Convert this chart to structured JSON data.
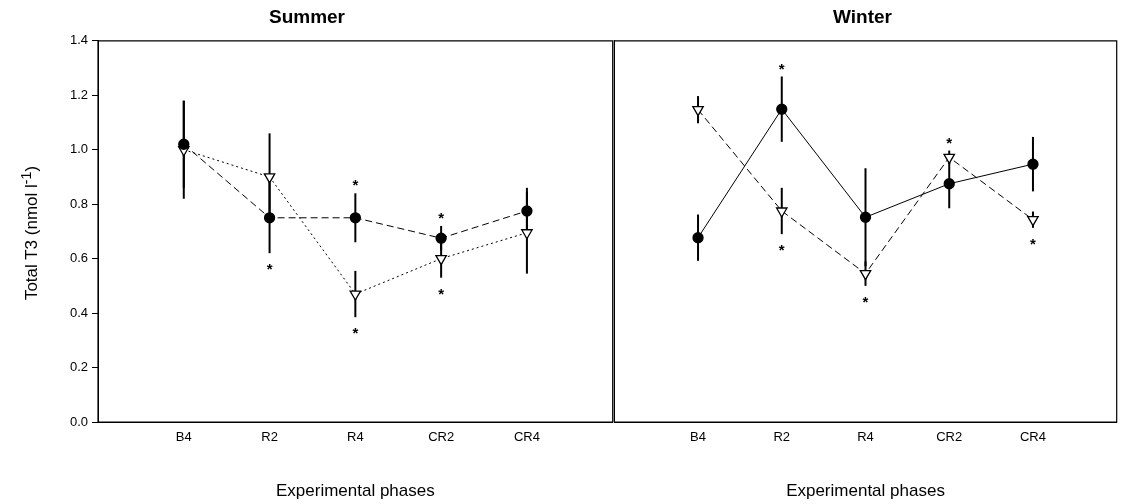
{
  "chart_data": [
    {
      "type": "line",
      "title": "Summer",
      "xlabel": "Experimental phases",
      "ylabel": "Total T3 (nmol l$^{-1}$)",
      "categories": [
        "B4",
        "R2",
        "R4",
        "CR2",
        "CR4"
      ],
      "series": [
        {
          "color": "#000000",
          "marker": "circle",
          "line_style": "dashed",
          "values": [
            1.02,
            0.75,
            0.75,
            0.675,
            0.775
          ],
          "errors": [
            0.16,
            0.13,
            0.09,
            0.045,
            0.085
          ]
        },
        {
          "color": "#000000",
          "marker": "triangle",
          "line_style": "dotted",
          "values": [
            1.0,
            0.9,
            0.47,
            0.6,
            0.695
          ],
          "errors": [
            0.18,
            0.16,
            0.085,
            0.07,
            0.15
          ]
        }
      ],
      "ylim": [
        0,
        1.4
      ],
      "yticks": [
        {
          "value": 0,
          "label": "0.0"
        },
        0.2,
        0.4,
        0.6,
        0.8,
        {
          "value": 1,
          "label": "1.0"
        },
        1.2,
        1.4
      ],
      "grid": false,
      "legend": false,
      "annotations": [
        {
          "text": "*",
          "x": "R2",
          "y": 0.75
        },
        {
          "text": "*",
          "x": "R4",
          "y": 0.75
        },
        {
          "text": "*",
          "x": "R4",
          "y": 0.47
        },
        {
          "text": "*",
          "x": "CR2",
          "y": 0.675
        },
        {
          "text": "*",
          "x": "CR2",
          "y": 0.6
        }
      ]
    },
    {
      "type": "line",
      "title": "Winter",
      "xlabel": "Experimental phases",
      "categories": [
        "B4",
        "R2",
        "R4",
        "CR2",
        "CR4"
      ],
      "series": [
        {
          "color": "#000000",
          "marker": "circle",
          "line_style": "solid",
          "values": [
            0.677,
            1.149,
            0.752,
            0.875,
            0.947
          ],
          "errors": [
            0.085,
            0.12,
            0.18,
            0.09,
            0.1
          ]
        },
        {
          "color": "#000000",
          "marker": "triangle",
          "line_style": "dashed",
          "values": [
            1.147,
            0.775,
            0.545,
            0.972,
            0.743
          ],
          "errors": [
            0.05,
            0.085,
            0.045,
            0.025,
            0.03
          ]
        }
      ],
      "ylim": [
        0,
        1.4
      ],
      "grid": false,
      "legend": false,
      "tick_labels": "x",
      "annotations": [
        {
          "text": "*",
          "x": "R2",
          "y": 1.149
        },
        {
          "text": "*",
          "x": "R2",
          "y": 0.775
        },
        {
          "text": "*",
          "x": "R4",
          "y": 0.545
        },
        {
          "text": "*",
          "x": "CR2",
          "y": 0.972
        },
        {
          "text": "*",
          "x": "CR4",
          "y": 0.743
        }
      ]
    }
  ]
}
